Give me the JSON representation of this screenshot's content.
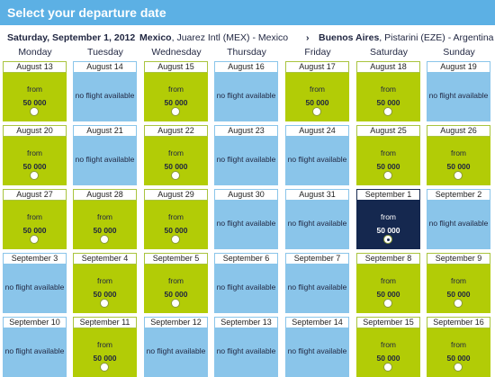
{
  "header": {
    "title": "Select your departure date"
  },
  "route": {
    "date": "Saturday, September 1, 2012",
    "origin_city": "Mexico",
    "origin_detail": ", Juarez Intl (MEX) - Mexico",
    "arrow": "›",
    "dest_city": "Buenos Aires",
    "dest_detail": ", Pistarini (EZE) - Argentina"
  },
  "weekdays": [
    "Monday",
    "Tuesday",
    "Wednesday",
    "Thursday",
    "Friday",
    "Saturday",
    "Sunday"
  ],
  "labels": {
    "from": "from",
    "no_flight": "no flight available"
  },
  "colors": {
    "available": "#b2cc06",
    "unavailable": "#8ac5ea",
    "selected": "#15284f",
    "header": "#5cb0e4"
  },
  "calendar": [
    [
      {
        "date": "August 13",
        "available": true,
        "price": "50 000"
      },
      {
        "date": "August 14",
        "available": false
      },
      {
        "date": "August 15",
        "available": true,
        "price": "50 000"
      },
      {
        "date": "August 16",
        "available": false
      },
      {
        "date": "August 17",
        "available": true,
        "price": "50 000"
      },
      {
        "date": "August 18",
        "available": true,
        "price": "50 000"
      },
      {
        "date": "August 19",
        "available": false
      }
    ],
    [
      {
        "date": "August 20",
        "available": true,
        "price": "50 000"
      },
      {
        "date": "August 21",
        "available": false
      },
      {
        "date": "August 22",
        "available": true,
        "price": "50 000"
      },
      {
        "date": "August 23",
        "available": false
      },
      {
        "date": "August 24",
        "available": false
      },
      {
        "date": "August 25",
        "available": true,
        "price": "50 000"
      },
      {
        "date": "August 26",
        "available": true,
        "price": "50 000"
      }
    ],
    [
      {
        "date": "August 27",
        "available": true,
        "price": "50 000"
      },
      {
        "date": "August 28",
        "available": true,
        "price": "50 000"
      },
      {
        "date": "August 29",
        "available": true,
        "price": "50 000"
      },
      {
        "date": "August 30",
        "available": false
      },
      {
        "date": "August 31",
        "available": false
      },
      {
        "date": "September 1",
        "available": true,
        "price": "50 000",
        "selected": true
      },
      {
        "date": "September 2",
        "available": false
      }
    ],
    [
      {
        "date": "September 3",
        "available": false
      },
      {
        "date": "September 4",
        "available": true,
        "price": "50 000"
      },
      {
        "date": "September 5",
        "available": true,
        "price": "50 000"
      },
      {
        "date": "September 6",
        "available": false
      },
      {
        "date": "September 7",
        "available": false
      },
      {
        "date": "September 8",
        "available": true,
        "price": "50 000"
      },
      {
        "date": "September 9",
        "available": true,
        "price": "50 000"
      }
    ],
    [
      {
        "date": "September 10",
        "available": false
      },
      {
        "date": "September 11",
        "available": true,
        "price": "50 000"
      },
      {
        "date": "September 12",
        "available": false
      },
      {
        "date": "September 13",
        "available": false
      },
      {
        "date": "September 14",
        "available": false
      },
      {
        "date": "September 15",
        "available": true,
        "price": "50 000"
      },
      {
        "date": "September 16",
        "available": true,
        "price": "50 000"
      }
    ]
  ]
}
